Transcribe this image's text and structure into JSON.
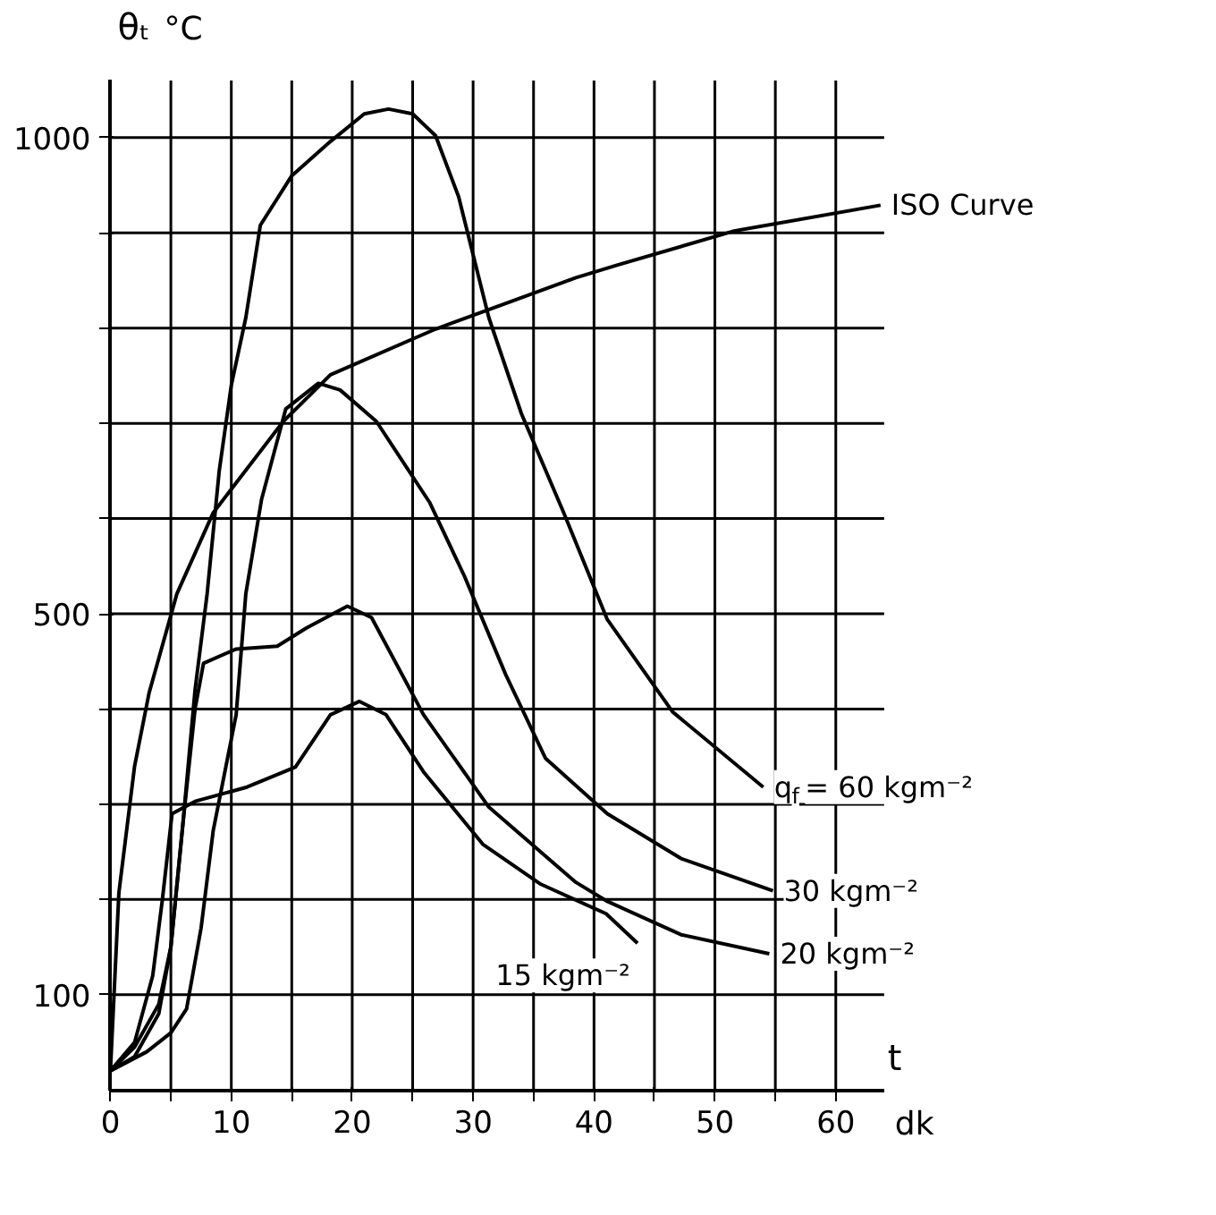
{
  "chart_data": {
    "type": "line",
    "xlabel": "t",
    "ylabel": "θₜ",
    "annotations": [
      "°C",
      "dk"
    ],
    "xlim": [
      0,
      64
    ],
    "ylim": [
      0,
      1060
    ],
    "xticks": [
      0,
      {
        "value": 5,
        "label": null
      },
      10,
      {
        "value": 15,
        "label": null
      },
      20,
      {
        "value": 25,
        "label": null
      },
      30,
      {
        "value": 35,
        "label": null
      },
      40,
      {
        "value": 45,
        "label": null
      },
      50,
      {
        "value": 55,
        "label": null
      },
      60
    ],
    "yticks": [
      100,
      {
        "value": 200,
        "label": null
      },
      {
        "value": 300,
        "label": null
      },
      {
        "value": 400,
        "label": null
      },
      500,
      {
        "value": 600,
        "label": null
      },
      {
        "value": 700,
        "label": null
      },
      {
        "value": 800,
        "label": null
      },
      {
        "value": 900,
        "label": null
      },
      1000
    ],
    "grid": true,
    "marker": "none",
    "line_style": "solid",
    "series": [
      {
        "name": "ISO Curve",
        "color": "#000000",
        "x": [
          0,
          0.7,
          2,
          3.2,
          5.5,
          8.5,
          14.3,
          18.2,
          26.9,
          32.7,
          38.5,
          41.9,
          51.6,
          63.7
        ],
        "values": [
          20,
          207,
          340,
          417,
          521,
          606,
          702,
          751,
          799,
          826,
          853,
          866,
          902,
          929
        ]
      },
      {
        "name": "q$_{f}$ = 60 kgm⁻²",
        "color": "#000000",
        "x": [
          0,
          2,
          4,
          5,
          6,
          7,
          8,
          9,
          10,
          11.2,
          12.4,
          15,
          18.2,
          21,
          23,
          25,
          26.9,
          28.8,
          31.3,
          34,
          37.5,
          41.1,
          46.5,
          54
        ],
        "values": [
          20,
          35,
          80,
          150,
          280,
          420,
          521,
          650,
          740,
          811,
          908,
          960,
          996,
          1025,
          1030,
          1025,
          1002,
          938,
          811,
          710,
          606,
          494,
          397,
          318
        ]
      },
      {
        "name": "30 kgm⁻²",
        "color": "#000000",
        "x": [
          0,
          3,
          5,
          6.3,
          7.5,
          8.5,
          10.4,
          11.2,
          12.5,
          14.5,
          17.2,
          19,
          22,
          26.4,
          29.3,
          32.7,
          36,
          41.1,
          47.2,
          54.8
        ],
        "values": [
          20,
          40,
          60,
          85,
          170,
          272,
          394,
          521,
          620,
          715,
          742,
          735,
          702,
          617,
          539,
          436,
          348,
          290,
          243,
          209
        ]
      },
      {
        "name": "20 kgm⁻²",
        "color": "#000000",
        "x": [
          0,
          2,
          4,
          5,
          6,
          7,
          7.7,
          10.4,
          13.8,
          16.2,
          19.6,
          21.6,
          25.9,
          31.3,
          38.5,
          41.1,
          47.2,
          54.5
        ],
        "values": [
          20,
          45,
          90,
          150,
          280,
          400,
          448,
          463,
          466,
          485,
          508,
          496,
          394,
          297,
          218,
          198,
          163,
          143
        ]
      },
      {
        "name": "15 kgm⁻²",
        "color": "#000000",
        "x": [
          0,
          2,
          3.5,
          4.3,
          5.1,
          7,
          11.3,
          15.3,
          18.2,
          20.6,
          22.8,
          25.9,
          30.8,
          35.6,
          41,
          43.6
        ],
        "values": [
          20,
          50,
          120,
          200,
          290,
          303,
          318,
          339,
          394,
          408,
          394,
          334,
          258,
          216,
          185,
          154
        ]
      }
    ]
  }
}
